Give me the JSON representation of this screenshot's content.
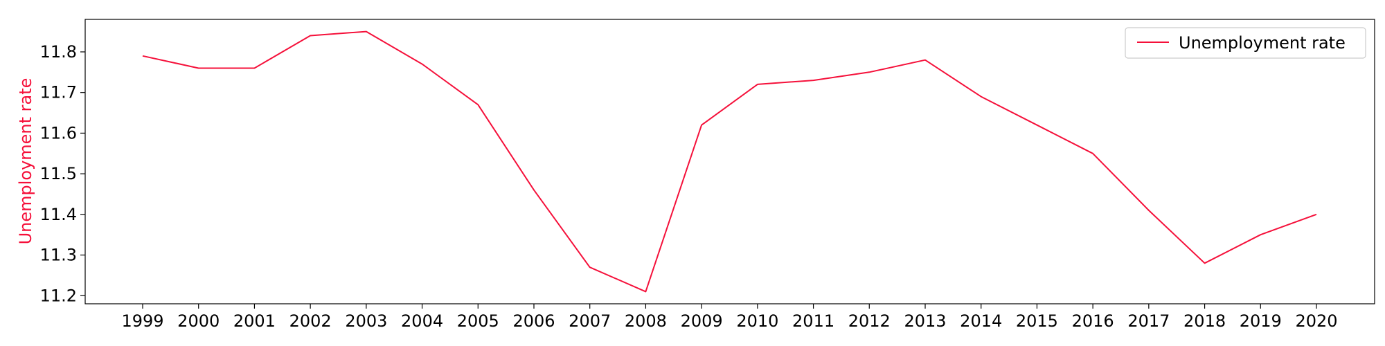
{
  "chart_data": {
    "type": "line",
    "title": "",
    "xlabel": "",
    "ylabel": "Unemployment rate",
    "categories": [
      "1999",
      "2000",
      "2001",
      "2002",
      "2003",
      "2004",
      "2005",
      "2006",
      "2007",
      "2008",
      "2009",
      "2010",
      "2011",
      "2012",
      "2013",
      "2014",
      "2015",
      "2016",
      "2017",
      "2018",
      "2019",
      "2020"
    ],
    "series": [
      {
        "name": "Unemployment rate",
        "color": "#f5103a",
        "values": [
          11.79,
          11.76,
          11.76,
          11.84,
          11.85,
          11.77,
          11.67,
          11.46,
          11.27,
          11.21,
          11.62,
          11.72,
          11.73,
          11.75,
          11.78,
          11.69,
          11.62,
          11.55,
          11.41,
          11.28,
          11.35,
          11.4
        ]
      }
    ],
    "ylim": [
      11.18,
      11.88
    ],
    "yticks": [
      "11.2",
      "11.3",
      "11.4",
      "11.5",
      "11.6",
      "11.7",
      "11.8"
    ],
    "grid": false,
    "legend_position": "top-right"
  }
}
